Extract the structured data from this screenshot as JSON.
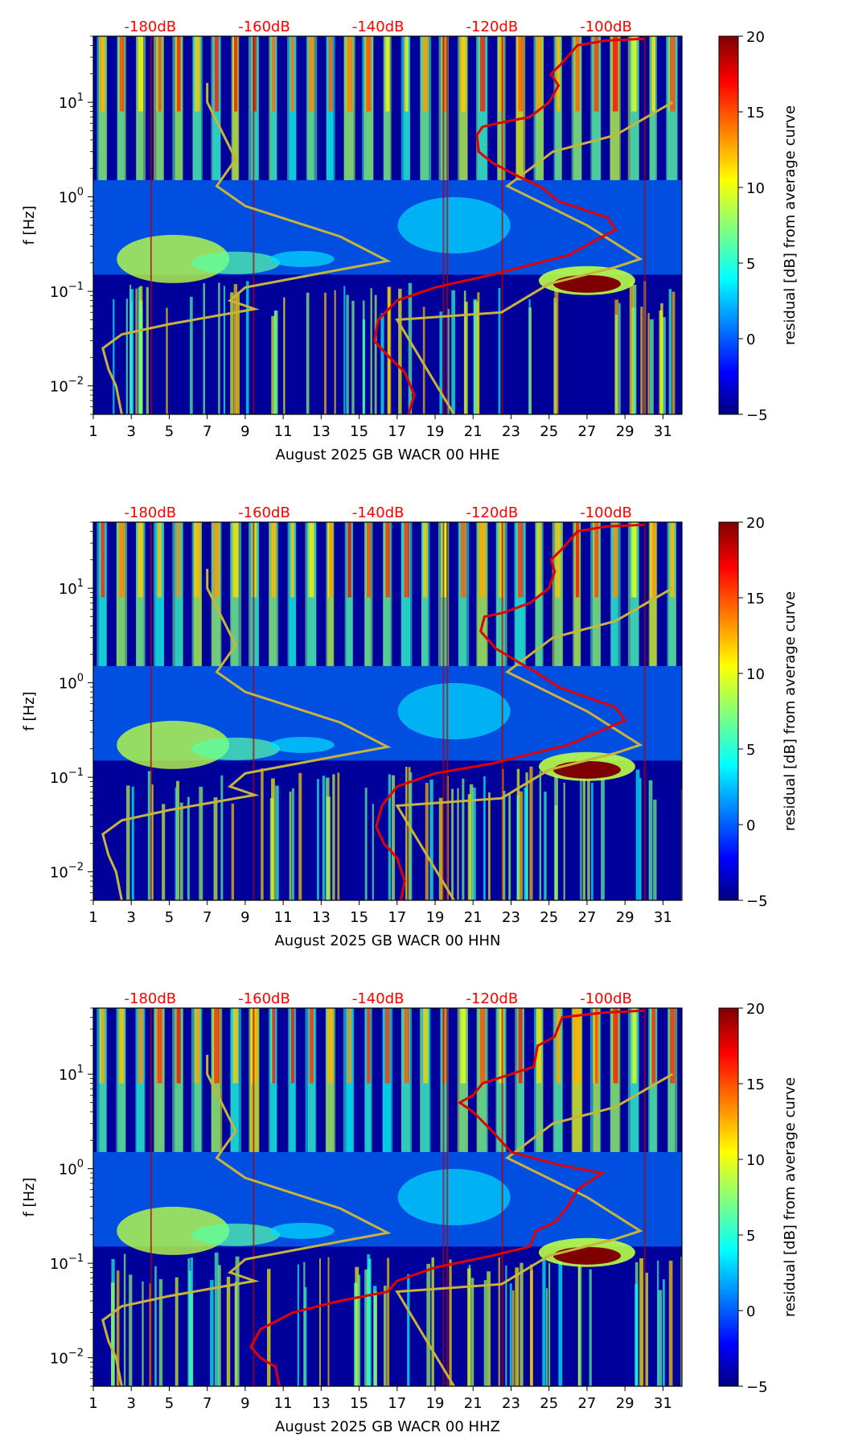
{
  "colors": {
    "jet": [
      "#00007f",
      "#0000ff",
      "#007fff",
      "#00ffff",
      "#7fff7f",
      "#ffff00",
      "#ff7f00",
      "#ff0000",
      "#7f0000"
    ],
    "red_curve": "#e00000",
    "olive_curve": "#c8b43a",
    "db_label": "#ff0000"
  },
  "chart_data": [
    {
      "type": "heatmap",
      "xlabel": "August 2025 GB WACR 00 HHE",
      "ylabel": "f [Hz]",
      "x_ticks": [
        "1",
        "3",
        "5",
        "7",
        "9",
        "11",
        "13",
        "15",
        "17",
        "19",
        "21",
        "23",
        "25",
        "27",
        "29",
        "31"
      ],
      "xlim": [
        1,
        32
      ],
      "y_ticks": [
        {
          "value": 0.01,
          "base": "10",
          "exp": "−2"
        },
        {
          "value": 0.1,
          "base": "10",
          "exp": "−1"
        },
        {
          "value": 1,
          "base": "10",
          "exp": "0"
        },
        {
          "value": 10,
          "base": "10",
          "exp": "1"
        }
      ],
      "ylim": [
        0.005,
        50
      ],
      "top_db_labels": [
        {
          "day": 4,
          "label": "-180dB"
        },
        {
          "day": 10,
          "label": "-160dB"
        },
        {
          "day": 16,
          "label": "-140dB"
        },
        {
          "day": 22,
          "label": "-120dB"
        },
        {
          "day": 28,
          "label": "-100dB"
        }
      ],
      "colorbar": {
        "label": "residual [dB] from average curve",
        "ticks": [
          {
            "value": 20,
            "label": "20"
          },
          {
            "value": 15,
            "label": "15"
          },
          {
            "value": 10,
            "label": "10"
          },
          {
            "value": 5,
            "label": "5"
          },
          {
            "value": 0,
            "label": "0"
          },
          {
            "value": -5,
            "label": "−5"
          }
        ],
        "min": -5,
        "max": 20
      },
      "red_curve": [
        [
          17.6,
          0.005
        ],
        [
          17.9,
          0.008
        ],
        [
          17.4,
          0.014
        ],
        [
          16.6,
          0.02
        ],
        [
          15.8,
          0.03
        ],
        [
          16.0,
          0.05
        ],
        [
          17.0,
          0.08
        ],
        [
          19,
          0.11
        ],
        [
          22,
          0.15
        ],
        [
          26,
          0.24
        ],
        [
          28.5,
          0.45
        ],
        [
          28.1,
          0.6
        ],
        [
          25.5,
          0.9
        ],
        [
          24.5,
          1.3
        ],
        [
          23.5,
          1.6
        ],
        [
          22,
          2.3
        ],
        [
          21.3,
          3
        ],
        [
          21.2,
          4.5
        ],
        [
          21.5,
          5.5
        ],
        [
          22.3,
          6
        ],
        [
          24,
          7
        ],
        [
          25,
          10
        ],
        [
          25.5,
          15
        ],
        [
          25.1,
          20
        ],
        [
          25.6,
          25
        ],
        [
          26.5,
          40
        ],
        [
          28,
          45
        ],
        [
          29,
          46
        ],
        [
          30,
          47
        ]
      ],
      "olive_curve": [
        [
          2.5,
          0.005
        ],
        [
          2.2,
          0.01
        ],
        [
          1.8,
          0.015
        ],
        [
          1.5,
          0.025
        ],
        [
          2.5,
          0.035
        ],
        [
          5,
          0.045
        ],
        [
          9.5,
          0.065
        ],
        [
          8.2,
          0.08
        ],
        [
          9,
          0.11
        ],
        [
          14,
          0.17
        ],
        [
          16.5,
          0.21
        ],
        [
          14,
          0.38
        ],
        [
          9,
          0.8
        ],
        [
          7.5,
          1.3
        ],
        [
          8.5,
          2.5
        ],
        [
          7,
          10
        ],
        [
          7,
          16
        ],
        [
          20,
          0.005
        ],
        [
          17,
          0.05
        ],
        [
          22.5,
          0.06
        ],
        [
          25,
          0.12
        ],
        [
          28.5,
          0.18
        ],
        [
          29.8,
          0.22
        ],
        [
          27,
          0.5
        ],
        [
          22.8,
          1.3
        ],
        [
          25.2,
          3
        ],
        [
          28.5,
          4.5
        ],
        [
          31.5,
          10
        ]
      ]
    },
    {
      "type": "heatmap",
      "xlabel": "August 2025 GB WACR 00 HHN",
      "ylabel": "f [Hz]",
      "x_ticks": [
        "1",
        "3",
        "5",
        "7",
        "9",
        "11",
        "13",
        "15",
        "17",
        "19",
        "21",
        "23",
        "25",
        "27",
        "29",
        "31"
      ],
      "xlim": [
        1,
        32
      ],
      "y_ticks": [
        {
          "value": 0.01,
          "base": "10",
          "exp": "−2"
        },
        {
          "value": 0.1,
          "base": "10",
          "exp": "−1"
        },
        {
          "value": 1,
          "base": "10",
          "exp": "0"
        },
        {
          "value": 10,
          "base": "10",
          "exp": "1"
        }
      ],
      "ylim": [
        0.005,
        50
      ],
      "top_db_labels": [
        {
          "day": 4,
          "label": "-180dB"
        },
        {
          "day": 10,
          "label": "-160dB"
        },
        {
          "day": 16,
          "label": "-140dB"
        },
        {
          "day": 22,
          "label": "-120dB"
        },
        {
          "day": 28,
          "label": "-100dB"
        }
      ],
      "colorbar": {
        "label": "residual [dB] from average curve",
        "ticks": [
          {
            "value": 20,
            "label": "20"
          },
          {
            "value": 15,
            "label": "15"
          },
          {
            "value": 10,
            "label": "10"
          },
          {
            "value": 5,
            "label": "5"
          },
          {
            "value": 0,
            "label": "0"
          },
          {
            "value": -5,
            "label": "−5"
          }
        ],
        "min": -5,
        "max": 20
      },
      "red_curve": [
        [
          17.2,
          0.005
        ],
        [
          17.4,
          0.008
        ],
        [
          17.0,
          0.014
        ],
        [
          16.3,
          0.02
        ],
        [
          15.9,
          0.03
        ],
        [
          16.2,
          0.05
        ],
        [
          17,
          0.08
        ],
        [
          19,
          0.11
        ],
        [
          22,
          0.14
        ],
        [
          26,
          0.22
        ],
        [
          29,
          0.4
        ],
        [
          28.5,
          0.55
        ],
        [
          25.5,
          0.9
        ],
        [
          24.3,
          1.3
        ],
        [
          23.5,
          1.6
        ],
        [
          22.2,
          2.3
        ],
        [
          21.4,
          3.5
        ],
        [
          21.6,
          5
        ],
        [
          22.6,
          5.5
        ],
        [
          24,
          7
        ],
        [
          25,
          10
        ],
        [
          25.3,
          15
        ],
        [
          25.1,
          20
        ],
        [
          25.6,
          25
        ],
        [
          26.5,
          40
        ],
        [
          28,
          45
        ],
        [
          30,
          47
        ]
      ],
      "olive_curve": [
        [
          2.5,
          0.005
        ],
        [
          2.2,
          0.01
        ],
        [
          1.8,
          0.015
        ],
        [
          1.5,
          0.025
        ],
        [
          2.5,
          0.035
        ],
        [
          5,
          0.045
        ],
        [
          9.5,
          0.065
        ],
        [
          8.2,
          0.08
        ],
        [
          9,
          0.11
        ],
        [
          14,
          0.17
        ],
        [
          16.5,
          0.21
        ],
        [
          14,
          0.38
        ],
        [
          9,
          0.8
        ],
        [
          7.5,
          1.3
        ],
        [
          8.5,
          2.5
        ],
        [
          7,
          10
        ],
        [
          7,
          16
        ],
        [
          20,
          0.005
        ],
        [
          17,
          0.05
        ],
        [
          22.5,
          0.06
        ],
        [
          25,
          0.12
        ],
        [
          28.5,
          0.18
        ],
        [
          29.8,
          0.22
        ],
        [
          27,
          0.5
        ],
        [
          22.8,
          1.3
        ],
        [
          25.2,
          3
        ],
        [
          28.5,
          4.5
        ],
        [
          31.5,
          10
        ]
      ]
    },
    {
      "type": "heatmap",
      "xlabel": "August 2025 GB WACR 00 HHZ",
      "ylabel": "f [Hz]",
      "x_ticks": [
        "1",
        "3",
        "5",
        "7",
        "9",
        "11",
        "13",
        "15",
        "17",
        "19",
        "21",
        "23",
        "25",
        "27",
        "29",
        "31"
      ],
      "xlim": [
        1,
        32
      ],
      "y_ticks": [
        {
          "value": 0.01,
          "base": "10",
          "exp": "−2"
        },
        {
          "value": 0.1,
          "base": "10",
          "exp": "−1"
        },
        {
          "value": 1,
          "base": "10",
          "exp": "0"
        },
        {
          "value": 10,
          "base": "10",
          "exp": "1"
        }
      ],
      "ylim": [
        0.005,
        50
      ],
      "top_db_labels": [
        {
          "day": 4,
          "label": "-180dB"
        },
        {
          "day": 10,
          "label": "-160dB"
        },
        {
          "day": 16,
          "label": "-140dB"
        },
        {
          "day": 22,
          "label": "-120dB"
        },
        {
          "day": 28,
          "label": "-100dB"
        }
      ],
      "colorbar": {
        "label": "residual [dB] from average curve",
        "ticks": [
          {
            "value": 20,
            "label": "20"
          },
          {
            "value": 15,
            "label": "15"
          },
          {
            "value": 10,
            "label": "10"
          },
          {
            "value": 5,
            "label": "5"
          },
          {
            "value": 0,
            "label": "0"
          },
          {
            "value": -5,
            "label": "−5"
          }
        ],
        "min": -5,
        "max": 20
      },
      "red_curve": [
        [
          10.8,
          0.005
        ],
        [
          10.6,
          0.008
        ],
        [
          9.8,
          0.01
        ],
        [
          9.3,
          0.013
        ],
        [
          9.8,
          0.02
        ],
        [
          11.5,
          0.03
        ],
        [
          14,
          0.04
        ],
        [
          16.5,
          0.05
        ],
        [
          17,
          0.065
        ],
        [
          19,
          0.09
        ],
        [
          22,
          0.12
        ],
        [
          24,
          0.15
        ],
        [
          24.3,
          0.22
        ],
        [
          25.3,
          0.27
        ],
        [
          26,
          0.4
        ],
        [
          26.5,
          0.6
        ],
        [
          27.8,
          0.9
        ],
        [
          25.5,
          1.1
        ],
        [
          23,
          1.5
        ],
        [
          22,
          2.5
        ],
        [
          21,
          4
        ],
        [
          20.3,
          5
        ],
        [
          21,
          6
        ],
        [
          21.5,
          8
        ],
        [
          23,
          10
        ],
        [
          24.2,
          12
        ],
        [
          24.4,
          20
        ],
        [
          25.3,
          25
        ],
        [
          25.7,
          40
        ],
        [
          28,
          45
        ],
        [
          30,
          47
        ]
      ],
      "olive_curve": [
        [
          2.5,
          0.005
        ],
        [
          2.2,
          0.01
        ],
        [
          1.8,
          0.015
        ],
        [
          1.5,
          0.025
        ],
        [
          2.5,
          0.035
        ],
        [
          5,
          0.045
        ],
        [
          9.5,
          0.065
        ],
        [
          8.2,
          0.08
        ],
        [
          9,
          0.11
        ],
        [
          14,
          0.17
        ],
        [
          16.5,
          0.21
        ],
        [
          14,
          0.38
        ],
        [
          9,
          0.8
        ],
        [
          7.5,
          1.3
        ],
        [
          8.5,
          2.5
        ],
        [
          7,
          10
        ],
        [
          7,
          16
        ],
        [
          20,
          0.005
        ],
        [
          17,
          0.05
        ],
        [
          22.5,
          0.06
        ],
        [
          25,
          0.12
        ],
        [
          28.5,
          0.18
        ],
        [
          29.8,
          0.22
        ],
        [
          27,
          0.5
        ],
        [
          22.8,
          1.3
        ],
        [
          25.2,
          3
        ],
        [
          28.5,
          4.5
        ],
        [
          31.5,
          10
        ]
      ]
    }
  ]
}
